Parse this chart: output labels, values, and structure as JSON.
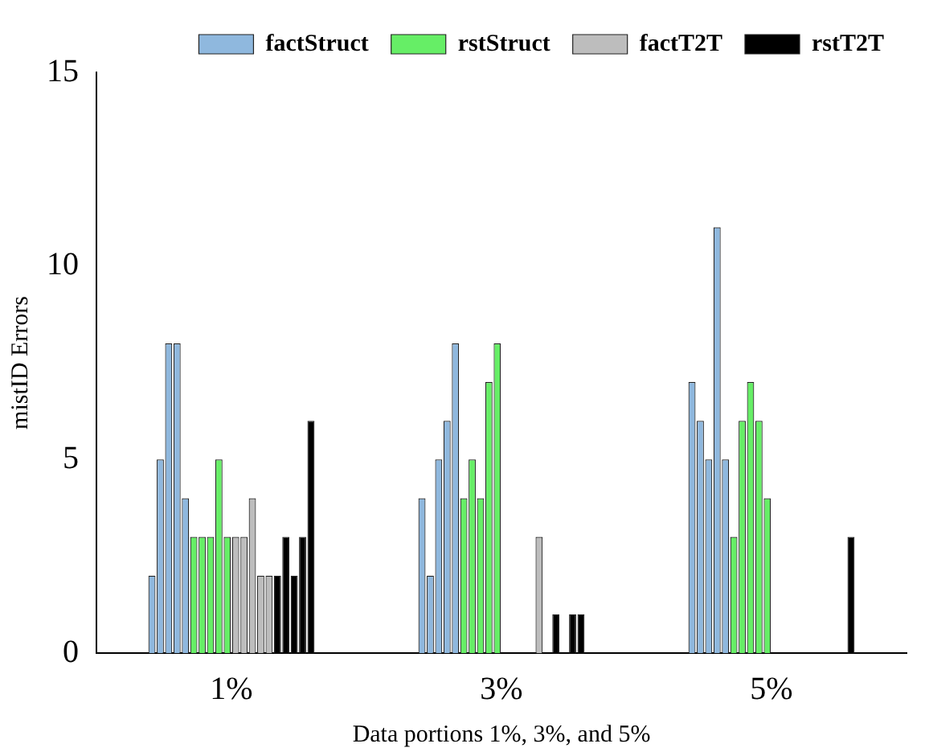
{
  "chart_data": {
    "type": "bar",
    "xlabel": "Data portions 1%, 3%, and 5%",
    "ylabel": "mistID Errors",
    "categories": [
      "1%",
      "3%",
      "5%"
    ],
    "series": [
      {
        "name": "factStruct",
        "color": "#8fb8de",
        "values": [
          2,
          4,
          7
        ]
      },
      {
        "color": "#8fb8de",
        "values": [
          5,
          2,
          6
        ]
      },
      {
        "color": "#8fb8de",
        "values": [
          8,
          5,
          5
        ]
      },
      {
        "color": "#8fb8de",
        "values": [
          8,
          6,
          11
        ]
      },
      {
        "color": "#8fb8de",
        "values": [
          4,
          8,
          5
        ]
      },
      {
        "name": "rstStruct",
        "color": "#66ee66",
        "values": [
          3,
          4,
          3
        ]
      },
      {
        "color": "#66ee66",
        "values": [
          3,
          5,
          6
        ]
      },
      {
        "color": "#66ee66",
        "values": [
          3,
          4,
          7
        ]
      },
      {
        "color": "#66ee66",
        "values": [
          5,
          7,
          6
        ]
      },
      {
        "color": "#66ee66",
        "values": [
          3,
          8,
          4
        ]
      },
      {
        "name": "factT2T",
        "color": "#bdbdbd",
        "values": [
          3,
          0,
          0
        ]
      },
      {
        "color": "#bdbdbd",
        "values": [
          3,
          0,
          0
        ]
      },
      {
        "color": "#bdbdbd",
        "values": [
          4,
          0,
          0
        ]
      },
      {
        "color": "#bdbdbd",
        "values": [
          2,
          0,
          0
        ]
      },
      {
        "color": "#bdbdbd",
        "values": [
          2,
          3,
          0
        ]
      },
      {
        "name": "rstT2T",
        "color": "#000000",
        "values": [
          2,
          0,
          0
        ]
      },
      {
        "color": "#000000",
        "values": [
          3,
          1,
          0
        ]
      },
      {
        "color": "#000000",
        "values": [
          2,
          0,
          0
        ]
      },
      {
        "color": "#000000",
        "values": [
          3,
          1,
          0
        ]
      },
      {
        "color": "#000000",
        "values": [
          6,
          1,
          3
        ]
      }
    ],
    "ylim": [
      0,
      15
    ],
    "yticks": [
      0,
      5,
      10,
      15
    ],
    "grid": false,
    "legend": "top right"
  }
}
